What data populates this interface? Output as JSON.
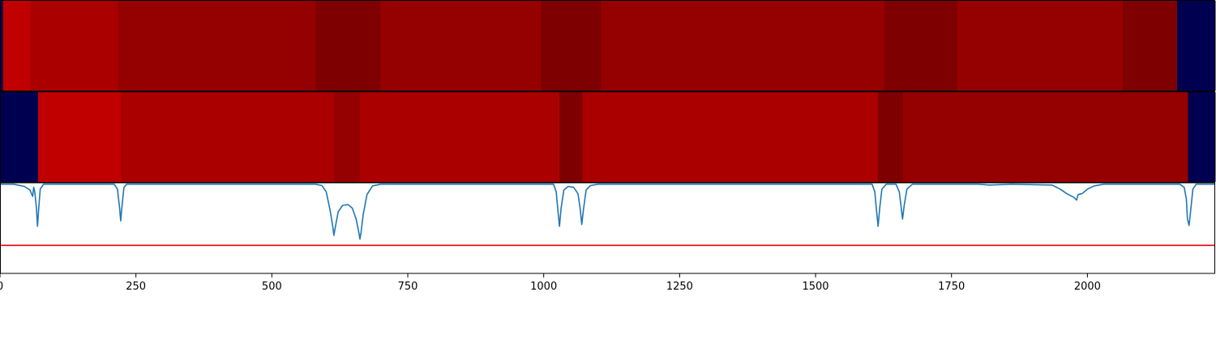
{
  "chart_data": {
    "type": "heatmap",
    "colors": {
      "signal_line": "#1f77b4",
      "threshold_line": "#e8000b",
      "axis": "#000000",
      "background": "#ffffff"
    },
    "x_axis": {
      "xlim": [
        0,
        2235
      ],
      "ticks": [
        0,
        250,
        500,
        750,
        1000,
        1250,
        1500,
        1750,
        2000
      ],
      "tick_labels": [
        "0",
        "250",
        "500",
        "750",
        "1000",
        "1250",
        "1500",
        "1750",
        "2000"
      ]
    },
    "segment_tracks": [
      {
        "segments": [
          {
            "start": 0,
            "end": 5,
            "color": "#000050"
          },
          {
            "start": 5,
            "end": 56,
            "color": "#c00000"
          },
          {
            "start": 56,
            "end": 217,
            "color": "#aa0000"
          },
          {
            "start": 217,
            "end": 581,
            "color": "#950000"
          },
          {
            "start": 581,
            "end": 700,
            "color": "#7e0000"
          },
          {
            "start": 700,
            "end": 995,
            "color": "#950000"
          },
          {
            "start": 995,
            "end": 1105,
            "color": "#7e0000"
          },
          {
            "start": 1105,
            "end": 1627,
            "color": "#950000"
          },
          {
            "start": 1627,
            "end": 1760,
            "color": "#7e0000"
          },
          {
            "start": 1760,
            "end": 2065,
            "color": "#950000"
          },
          {
            "start": 2065,
            "end": 2165,
            "color": "#7e0000"
          },
          {
            "start": 2165,
            "end": 2235,
            "color": "#000050"
          }
        ]
      },
      {
        "segments": [
          {
            "start": 0,
            "end": 70,
            "color": "#000050"
          },
          {
            "start": 70,
            "end": 222,
            "color": "#c00000"
          },
          {
            "start": 222,
            "end": 614,
            "color": "#aa0000"
          },
          {
            "start": 614,
            "end": 662,
            "color": "#950000"
          },
          {
            "start": 662,
            "end": 1029,
            "color": "#aa0000"
          },
          {
            "start": 1029,
            "end": 1071,
            "color": "#7e0000"
          },
          {
            "start": 1071,
            "end": 1615,
            "color": "#aa0000"
          },
          {
            "start": 1615,
            "end": 1660,
            "color": "#7e0000"
          },
          {
            "start": 1660,
            "end": 2185,
            "color": "#950000"
          },
          {
            "start": 2185,
            "end": 2235,
            "color": "#000050"
          }
        ]
      }
    ],
    "signal": {
      "ylim": [
        0,
        1
      ],
      "threshold": 0.31,
      "baseline": 0.985,
      "points": [
        [
          0,
          0.985
        ],
        [
          25,
          0.985
        ],
        [
          45,
          0.96
        ],
        [
          55,
          0.92
        ],
        [
          60,
          0.85
        ],
        [
          62,
          0.95
        ],
        [
          64,
          0.9
        ],
        [
          67,
          0.72
        ],
        [
          69,
          0.52
        ],
        [
          71,
          0.7
        ],
        [
          74,
          0.93
        ],
        [
          80,
          0.985
        ],
        [
          210,
          0.985
        ],
        [
          216,
          0.93
        ],
        [
          220,
          0.72
        ],
        [
          222,
          0.58
        ],
        [
          224,
          0.72
        ],
        [
          228,
          0.95
        ],
        [
          233,
          0.985
        ],
        [
          580,
          0.985
        ],
        [
          592,
          0.97
        ],
        [
          600,
          0.9
        ],
        [
          607,
          0.7
        ],
        [
          612,
          0.52
        ],
        [
          614,
          0.42
        ],
        [
          617,
          0.52
        ],
        [
          622,
          0.68
        ],
        [
          630,
          0.75
        ],
        [
          640,
          0.76
        ],
        [
          648,
          0.72
        ],
        [
          655,
          0.6
        ],
        [
          660,
          0.45
        ],
        [
          662,
          0.38
        ],
        [
          664,
          0.45
        ],
        [
          668,
          0.65
        ],
        [
          675,
          0.87
        ],
        [
          685,
          0.965
        ],
        [
          700,
          0.985
        ],
        [
          1018,
          0.985
        ],
        [
          1023,
          0.9
        ],
        [
          1026,
          0.7
        ],
        [
          1029,
          0.52
        ],
        [
          1032,
          0.72
        ],
        [
          1037,
          0.92
        ],
        [
          1045,
          0.96
        ],
        [
          1055,
          0.95
        ],
        [
          1063,
          0.88
        ],
        [
          1067,
          0.72
        ],
        [
          1070,
          0.54
        ],
        [
          1073,
          0.7
        ],
        [
          1078,
          0.92
        ],
        [
          1086,
          0.97
        ],
        [
          1100,
          0.985
        ],
        [
          1604,
          0.985
        ],
        [
          1609,
          0.9
        ],
        [
          1612,
          0.7
        ],
        [
          1615,
          0.52
        ],
        [
          1618,
          0.72
        ],
        [
          1622,
          0.93
        ],
        [
          1630,
          0.985
        ],
        [
          1648,
          0.985
        ],
        [
          1654,
          0.9
        ],
        [
          1657,
          0.75
        ],
        [
          1660,
          0.6
        ],
        [
          1663,
          0.75
        ],
        [
          1668,
          0.93
        ],
        [
          1678,
          0.985
        ],
        [
          1800,
          0.985
        ],
        [
          1820,
          0.975
        ],
        [
          1860,
          0.985
        ],
        [
          1935,
          0.975
        ],
        [
          1950,
          0.93
        ],
        [
          1962,
          0.88
        ],
        [
          1975,
          0.84
        ],
        [
          1980,
          0.81
        ],
        [
          1983,
          0.87
        ],
        [
          1990,
          0.88
        ],
        [
          2000,
          0.93
        ],
        [
          2012,
          0.965
        ],
        [
          2030,
          0.985
        ],
        [
          2170,
          0.985
        ],
        [
          2178,
          0.95
        ],
        [
          2182,
          0.82
        ],
        [
          2184,
          0.6
        ],
        [
          2187,
          0.53
        ],
        [
          2190,
          0.7
        ],
        [
          2194,
          0.93
        ],
        [
          2200,
          0.985
        ],
        [
          2235,
          0.985
        ]
      ]
    }
  }
}
